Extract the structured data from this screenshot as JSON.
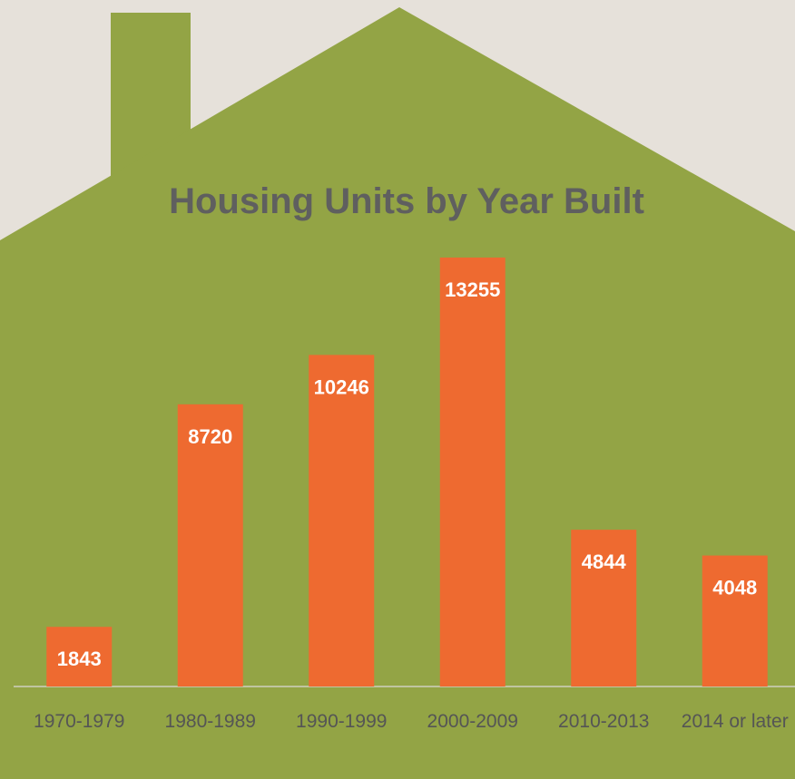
{
  "chart_data": {
    "type": "bar",
    "title": "Housing Units by Year Built",
    "categories": [
      "1970-1979",
      "1980-1989",
      "1990-1999",
      "2000-2009",
      "2010-2013",
      "2014 or later"
    ],
    "values": [
      1843,
      8720,
      10246,
      13255,
      4844,
      4048
    ],
    "color": "#ee6a30"
  }
}
